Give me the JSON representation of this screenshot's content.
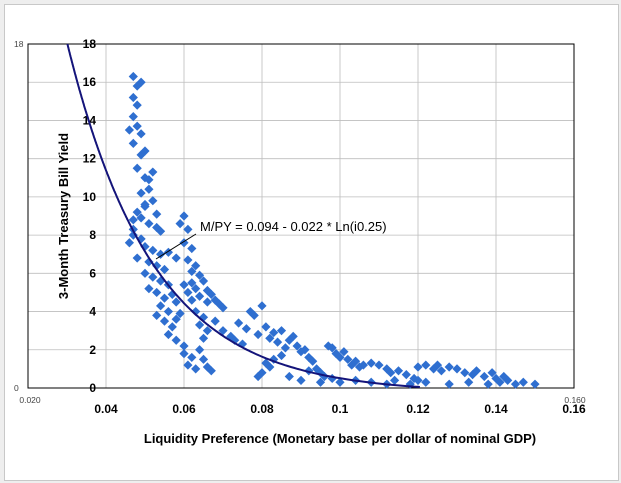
{
  "chart_data": {
    "type": "scatter",
    "xlabel": "Liquidity Preference (Monetary base per dollar of nominal GDP)",
    "ylabel": "3-Month Treasury Bill Yield",
    "xlim": [
      0.02,
      0.16
    ],
    "ylim": [
      0,
      18
    ],
    "x_ticks": [
      "0.04",
      "0.06",
      "0.08",
      "0.1",
      "0.12",
      "0.14",
      "0.16"
    ],
    "y_ticks": [
      "0",
      "2",
      "4",
      "6",
      "8",
      "10",
      "12",
      "14",
      "16",
      "18"
    ],
    "outer_labels": {
      "y_min": "0",
      "y_max": "18",
      "x_min": "0.020",
      "x_max": "0.160"
    },
    "grid": true,
    "annotation": "M/PY = 0.094 - 0.022 * Ln(i0.25)",
    "marker_color": "#2f6fd0",
    "curve_color": "#14147a",
    "curve": {
      "formula": "x = 0.094 - 0.022 * ln(y + 0.25)",
      "a": 0.094,
      "b": 0.022,
      "c": 0.25
    },
    "points": [
      [
        0.047,
        16.3
      ],
      [
        0.048,
        15.8
      ],
      [
        0.047,
        15.2
      ],
      [
        0.048,
        14.8
      ],
      [
        0.049,
        16.0
      ],
      [
        0.047,
        14.2
      ],
      [
        0.048,
        13.7
      ],
      [
        0.046,
        13.5
      ],
      [
        0.047,
        12.8
      ],
      [
        0.049,
        12.2
      ],
      [
        0.048,
        11.5
      ],
      [
        0.05,
        11.0
      ],
      [
        0.051,
        10.4
      ],
      [
        0.049,
        10.2
      ],
      [
        0.052,
        9.8
      ],
      [
        0.05,
        9.5
      ],
      [
        0.048,
        9.2
      ],
      [
        0.047,
        8.8
      ],
      [
        0.051,
        8.6
      ],
      [
        0.053,
        8.4
      ],
      [
        0.047,
        8.0
      ],
      [
        0.049,
        7.8
      ],
      [
        0.05,
        7.4
      ],
      [
        0.052,
        7.2
      ],
      [
        0.054,
        7.0
      ],
      [
        0.048,
        6.8
      ],
      [
        0.051,
        6.6
      ],
      [
        0.053,
        6.4
      ],
      [
        0.055,
        6.2
      ],
      [
        0.05,
        6.0
      ],
      [
        0.052,
        5.8
      ],
      [
        0.054,
        5.6
      ],
      [
        0.056,
        5.4
      ],
      [
        0.051,
        5.2
      ],
      [
        0.053,
        5.0
      ],
      [
        0.057,
        4.9
      ],
      [
        0.055,
        4.7
      ],
      [
        0.058,
        4.5
      ],
      [
        0.054,
        4.3
      ],
      [
        0.056,
        4.0
      ],
      [
        0.053,
        3.8
      ],
      [
        0.055,
        3.5
      ],
      [
        0.057,
        3.2
      ],
      [
        0.056,
        2.8
      ],
      [
        0.058,
        2.5
      ],
      [
        0.06,
        2.2
      ],
      [
        0.046,
        7.6
      ],
      [
        0.047,
        8.3
      ],
      [
        0.049,
        8.9
      ],
      [
        0.05,
        9.6
      ],
      [
        0.051,
        10.9
      ],
      [
        0.052,
        11.3
      ],
      [
        0.049,
        13.3
      ],
      [
        0.05,
        12.4
      ],
      [
        0.053,
        9.1
      ],
      [
        0.054,
        8.2
      ],
      [
        0.056,
        7.1
      ],
      [
        0.058,
        6.8
      ],
      [
        0.059,
        8.6
      ],
      [
        0.06,
        9.0
      ],
      [
        0.061,
        8.3
      ],
      [
        0.06,
        7.6
      ],
      [
        0.062,
        7.3
      ],
      [
        0.061,
        6.7
      ],
      [
        0.063,
        6.4
      ],
      [
        0.062,
        6.1
      ],
      [
        0.064,
        5.9
      ],
      [
        0.065,
        5.6
      ],
      [
        0.063,
        5.2
      ],
      [
        0.066,
        5.1
      ],
      [
        0.067,
        4.9
      ],
      [
        0.068,
        4.6
      ],
      [
        0.069,
        4.4
      ],
      [
        0.07,
        4.2
      ],
      [
        0.066,
        4.5
      ],
      [
        0.064,
        4.8
      ],
      [
        0.062,
        4.6
      ],
      [
        0.063,
        4.0
      ],
      [
        0.065,
        3.7
      ],
      [
        0.064,
        3.3
      ],
      [
        0.066,
        3.0
      ],
      [
        0.065,
        2.6
      ],
      [
        0.064,
        2.0
      ],
      [
        0.062,
        1.6
      ],
      [
        0.061,
        1.2
      ],
      [
        0.063,
        1.0
      ],
      [
        0.065,
        1.5
      ],
      [
        0.066,
        1.1
      ],
      [
        0.067,
        0.9
      ],
      [
        0.06,
        1.8
      ],
      [
        0.059,
        3.9
      ],
      [
        0.058,
        3.6
      ],
      [
        0.061,
        5.0
      ],
      [
        0.06,
        5.4
      ],
      [
        0.062,
        5.5
      ],
      [
        0.068,
        3.5
      ],
      [
        0.07,
        3.0
      ],
      [
        0.072,
        2.7
      ],
      [
        0.074,
        3.4
      ],
      [
        0.073,
        2.5
      ],
      [
        0.075,
        2.3
      ],
      [
        0.076,
        3.1
      ],
      [
        0.078,
        3.8
      ],
      [
        0.08,
        4.3
      ],
      [
        0.077,
        4.0
      ],
      [
        0.079,
        2.8
      ],
      [
        0.081,
        3.2
      ],
      [
        0.082,
        2.6
      ],
      [
        0.083,
        2.9
      ],
      [
        0.085,
        3.0
      ],
      [
        0.084,
        2.4
      ],
      [
        0.086,
        2.1
      ],
      [
        0.087,
        2.5
      ],
      [
        0.088,
        2.7
      ],
      [
        0.089,
        2.2
      ],
      [
        0.09,
        1.9
      ],
      [
        0.085,
        1.7
      ],
      [
        0.083,
        1.5
      ],
      [
        0.082,
        1.1
      ],
      [
        0.08,
        0.8
      ],
      [
        0.079,
        0.6
      ],
      [
        0.081,
        1.3
      ],
      [
        0.091,
        2.0
      ],
      [
        0.092,
        1.6
      ],
      [
        0.093,
        1.4
      ],
      [
        0.094,
        1.0
      ],
      [
        0.095,
        0.8
      ],
      [
        0.096,
        0.6
      ],
      [
        0.097,
        2.2
      ],
      [
        0.098,
        2.1
      ],
      [
        0.099,
        1.8
      ],
      [
        0.1,
        1.6
      ],
      [
        0.101,
        1.9
      ],
      [
        0.102,
        1.5
      ],
      [
        0.103,
        1.2
      ],
      [
        0.104,
        1.4
      ],
      [
        0.105,
        1.1
      ],
      [
        0.106,
        1.2
      ],
      [
        0.108,
        1.3
      ],
      [
        0.11,
        1.2
      ],
      [
        0.112,
        1.0
      ],
      [
        0.113,
        0.8
      ],
      [
        0.115,
        0.9
      ],
      [
        0.117,
        0.7
      ],
      [
        0.119,
        0.5
      ],
      [
        0.12,
        1.1
      ],
      [
        0.122,
        1.2
      ],
      [
        0.124,
        1.0
      ],
      [
        0.125,
        1.2
      ],
      [
        0.126,
        0.9
      ],
      [
        0.128,
        1.1
      ],
      [
        0.13,
        1.0
      ],
      [
        0.132,
        0.8
      ],
      [
        0.134,
        0.7
      ],
      [
        0.135,
        0.9
      ],
      [
        0.137,
        0.6
      ],
      [
        0.139,
        0.8
      ],
      [
        0.14,
        0.5
      ],
      [
        0.141,
        0.3
      ],
      [
        0.142,
        0.6
      ],
      [
        0.143,
        0.4
      ],
      [
        0.145,
        0.2
      ],
      [
        0.147,
        0.3
      ],
      [
        0.15,
        0.2
      ],
      [
        0.138,
        0.2
      ],
      [
        0.133,
        0.3
      ],
      [
        0.128,
        0.2
      ],
      [
        0.122,
        0.3
      ],
      [
        0.118,
        0.2
      ],
      [
        0.112,
        0.2
      ],
      [
        0.098,
        0.5
      ],
      [
        0.095,
        0.3
      ],
      [
        0.09,
        0.4
      ],
      [
        0.087,
        0.6
      ],
      [
        0.092,
        0.9
      ],
      [
        0.1,
        0.3
      ],
      [
        0.104,
        0.4
      ],
      [
        0.108,
        0.3
      ],
      [
        0.114,
        0.4
      ],
      [
        0.12,
        0.4
      ]
    ]
  }
}
